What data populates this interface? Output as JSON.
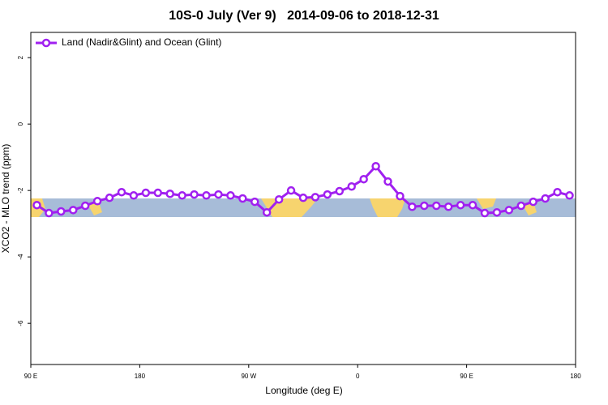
{
  "chart_data": {
    "type": "line",
    "title": "10S-0 July (Ver 9)   2014-09-06 to 2018-12-31",
    "x_label": "Longitude (deg E)",
    "y_label": "XCO2 - MLO trend (ppm)",
    "x": [
      95,
      105,
      115,
      125,
      135,
      145,
      155,
      165,
      175,
      185,
      195,
      205,
      215,
      225,
      235,
      245,
      255,
      265,
      275,
      285,
      295,
      305,
      315,
      325,
      335,
      345,
      355,
      365,
      375,
      385,
      395,
      405,
      415,
      425,
      435,
      445,
      455,
      465,
      475,
      485,
      495,
      505,
      515,
      525,
      535
    ],
    "series": [
      {
        "name": "Land (Nadir&Glint) and Ocean (Glint)",
        "color": "#a020f0",
        "values": [
          -2.44,
          -2.68,
          -2.63,
          -2.59,
          -2.46,
          -2.32,
          -2.22,
          -2.05,
          -2.15,
          -2.07,
          -2.07,
          -2.1,
          -2.15,
          -2.12,
          -2.15,
          -2.12,
          -2.15,
          -2.24,
          -2.34,
          -2.66,
          -2.27,
          -2.0,
          -2.22,
          -2.2,
          -2.12,
          -2.02,
          -1.88,
          -1.66,
          -1.27,
          -1.73,
          -2.17,
          -2.49,
          -2.46,
          -2.46,
          -2.49,
          -2.44,
          -2.44,
          -2.68,
          -2.66,
          -2.59,
          -2.46,
          -2.34,
          -2.24,
          -2.05,
          -2.15
        ]
      }
    ],
    "xlim": [
      90,
      540
    ],
    "xticks": [
      {
        "value": 90,
        "label": "90 E"
      },
      180,
      {
        "value": 270,
        "label": "90 W"
      },
      {
        "value": 360,
        "label": "0"
      },
      {
        "value": 450,
        "label": "90 E"
      },
      {
        "value": 540,
        "label": "180"
      }
    ],
    "ylim": [
      -7.24,
      2.76
    ],
    "yticks": [
      2,
      0,
      -2,
      -4,
      -6
    ],
    "legend": "top-left"
  }
}
